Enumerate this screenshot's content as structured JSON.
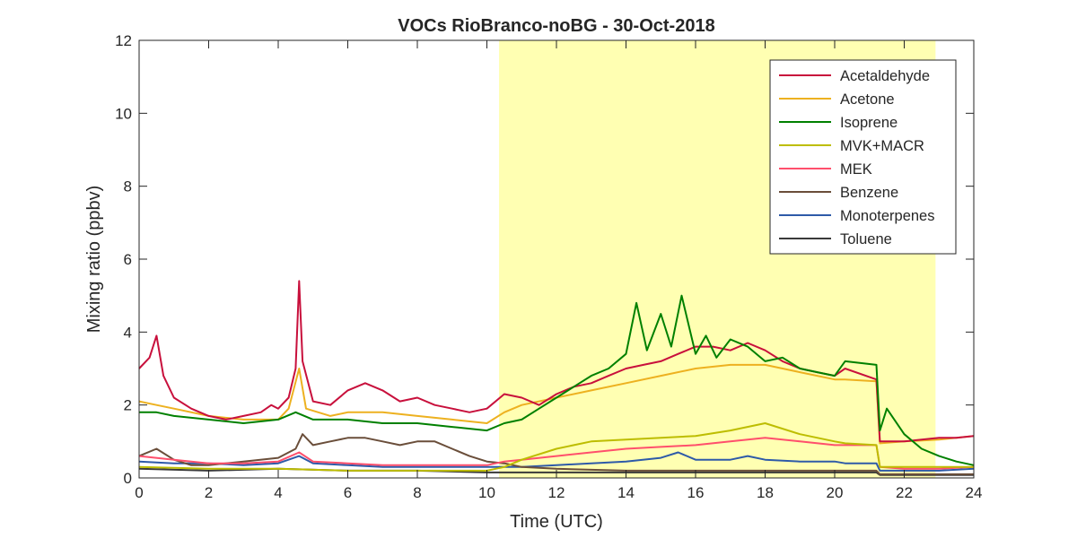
{
  "chart_data": {
    "type": "line",
    "title": "VOCs RioBranco-noBG - 30-Oct-2018",
    "xlabel": "Time (UTC)",
    "ylabel": "Mixing ratio (ppbv)",
    "xlim": [
      0,
      24
    ],
    "ylim": [
      0,
      12
    ],
    "xticks": [
      0,
      2,
      4,
      6,
      8,
      10,
      12,
      14,
      16,
      18,
      20,
      22,
      24
    ],
    "yticks": [
      0,
      2,
      4,
      6,
      8,
      10,
      12
    ],
    "grid": false,
    "legend_position": "top-right",
    "daylight_band": {
      "x_start": 10.35,
      "x_end": 22.9,
      "color": "#ffffb2"
    },
    "series": [
      {
        "name": "Acetaldehyde",
        "color": "#c8103c",
        "x": [
          0,
          0.3,
          0.5,
          0.7,
          1,
          1.5,
          2,
          2.5,
          3,
          3.5,
          3.8,
          4,
          4.3,
          4.5,
          4.6,
          4.7,
          5,
          5.5,
          6,
          6.5,
          7,
          7.5,
          8,
          8.5,
          9,
          9.5,
          10,
          10.5,
          11,
          11.5,
          12,
          12.5,
          13,
          13.5,
          14,
          14.5,
          15,
          15.5,
          16,
          16.5,
          17,
          17.5,
          18,
          18.5,
          19,
          19.5,
          20,
          20.3,
          21.2,
          21.3,
          22,
          22.5,
          23,
          23.5,
          24
        ],
        "y": [
          3.0,
          3.3,
          3.9,
          2.8,
          2.2,
          1.9,
          1.7,
          1.6,
          1.7,
          1.8,
          2.0,
          1.9,
          2.2,
          3.0,
          5.4,
          3.2,
          2.1,
          2.0,
          2.4,
          2.6,
          2.4,
          2.1,
          2.2,
          2.0,
          1.9,
          1.8,
          1.9,
          2.3,
          2.2,
          2.0,
          2.3,
          2.5,
          2.6,
          2.8,
          3.0,
          3.1,
          3.2,
          3.4,
          3.6,
          3.6,
          3.5,
          3.7,
          3.5,
          3.2,
          3.0,
          2.9,
          2.8,
          3.0,
          2.7,
          1.0,
          1.0,
          1.05,
          1.1,
          1.1,
          1.15
        ]
      },
      {
        "name": "Acetone",
        "color": "#edb120",
        "x": [
          0,
          0.5,
          1,
          2,
          3,
          4,
          4.3,
          4.6,
          4.8,
          5.5,
          6,
          7,
          8,
          9,
          10,
          10.5,
          11,
          12,
          13,
          14,
          15,
          16,
          17,
          18,
          19,
          20,
          20.3,
          21.2,
          21.3,
          22,
          23,
          24
        ],
        "y": [
          2.1,
          2.0,
          1.9,
          1.7,
          1.6,
          1.6,
          1.9,
          3.0,
          1.9,
          1.7,
          1.8,
          1.8,
          1.7,
          1.6,
          1.5,
          1.8,
          2.0,
          2.2,
          2.4,
          2.6,
          2.8,
          3.0,
          3.1,
          3.1,
          2.9,
          2.7,
          2.7,
          2.65,
          0.95,
          1.0,
          1.05,
          1.15
        ]
      },
      {
        "name": "Isoprene",
        "color": "#008000",
        "x": [
          0,
          0.5,
          1,
          2,
          3,
          4,
          4.5,
          5,
          6,
          7,
          8,
          9,
          10,
          10.5,
          11,
          11.5,
          12,
          12.5,
          13,
          13.5,
          14,
          14.3,
          14.6,
          15,
          15.3,
          15.6,
          16,
          16.3,
          16.6,
          17,
          17.5,
          18,
          18.5,
          19,
          19.5,
          20,
          20.3,
          21.2,
          21.3,
          21.5,
          22,
          22.5,
          23,
          23.5,
          24
        ],
        "y": [
          1.8,
          1.8,
          1.7,
          1.6,
          1.5,
          1.6,
          1.8,
          1.6,
          1.6,
          1.5,
          1.5,
          1.4,
          1.3,
          1.5,
          1.6,
          1.9,
          2.2,
          2.5,
          2.8,
          3.0,
          3.4,
          4.8,
          3.5,
          4.5,
          3.6,
          5.0,
          3.4,
          3.9,
          3.3,
          3.8,
          3.6,
          3.2,
          3.3,
          3.0,
          2.9,
          2.8,
          3.2,
          3.1,
          1.3,
          1.9,
          1.2,
          0.8,
          0.6,
          0.45,
          0.35
        ]
      },
      {
        "name": "MVK+MACR",
        "color": "#bdbd00",
        "x": [
          0,
          2,
          4,
          6,
          8,
          10,
          10.5,
          11,
          12,
          13,
          14,
          15,
          16,
          17,
          18,
          19,
          20,
          20.3,
          21.2,
          21.3,
          22,
          24
        ],
        "y": [
          0.3,
          0.25,
          0.25,
          0.2,
          0.2,
          0.2,
          0.3,
          0.5,
          0.8,
          1.0,
          1.05,
          1.1,
          1.15,
          1.3,
          1.5,
          1.2,
          1.0,
          0.95,
          0.9,
          0.3,
          0.3,
          0.3
        ]
      },
      {
        "name": "MEK",
        "color": "#ff4f6c",
        "x": [
          0,
          1,
          2,
          3,
          4,
          4.6,
          5,
          6,
          7,
          8,
          9,
          10,
          10.5,
          11,
          12,
          13,
          14,
          15,
          16,
          17,
          18,
          19,
          20,
          20.3,
          21.2,
          21.3,
          22,
          23,
          24
        ],
        "y": [
          0.6,
          0.5,
          0.4,
          0.4,
          0.45,
          0.7,
          0.45,
          0.4,
          0.35,
          0.35,
          0.35,
          0.35,
          0.45,
          0.5,
          0.6,
          0.7,
          0.8,
          0.85,
          0.9,
          1.0,
          1.1,
          1.0,
          0.9,
          0.9,
          0.9,
          0.3,
          0.25,
          0.25,
          0.3
        ]
      },
      {
        "name": "Benzene",
        "color": "#6a4e3a",
        "x": [
          0,
          0.5,
          1,
          1.5,
          2,
          3,
          4,
          4.5,
          4.7,
          5,
          5.5,
          6,
          6.5,
          7,
          7.5,
          8,
          8.5,
          9,
          9.5,
          10,
          10.5,
          11,
          12,
          14,
          16,
          18,
          20,
          21.2,
          21.3,
          22,
          24
        ],
        "y": [
          0.6,
          0.8,
          0.5,
          0.35,
          0.35,
          0.45,
          0.55,
          0.8,
          1.2,
          0.9,
          1.0,
          1.1,
          1.1,
          1.0,
          0.9,
          1.0,
          1.0,
          0.8,
          0.6,
          0.45,
          0.4,
          0.3,
          0.25,
          0.2,
          0.2,
          0.2,
          0.2,
          0.2,
          0.1,
          0.1,
          0.1
        ]
      },
      {
        "name": "Monoterpenes",
        "color": "#2e5aa8",
        "x": [
          0,
          1,
          2,
          3,
          4,
          4.6,
          5,
          6,
          7,
          8,
          9,
          10,
          11,
          12,
          13,
          14,
          15,
          15.5,
          16,
          17,
          17.5,
          18,
          19,
          20,
          20.3,
          21.2,
          21.3,
          22,
          23,
          24
        ],
        "y": [
          0.45,
          0.4,
          0.4,
          0.35,
          0.4,
          0.6,
          0.4,
          0.35,
          0.3,
          0.3,
          0.3,
          0.3,
          0.3,
          0.35,
          0.4,
          0.45,
          0.55,
          0.7,
          0.5,
          0.5,
          0.6,
          0.5,
          0.45,
          0.45,
          0.4,
          0.4,
          0.2,
          0.2,
          0.2,
          0.25
        ]
      },
      {
        "name": "Toluene",
        "color": "#3a3a3a",
        "x": [
          0,
          2,
          4,
          6,
          8,
          10,
          12,
          14,
          16,
          18,
          20,
          21.2,
          21.3,
          22,
          24
        ],
        "y": [
          0.25,
          0.2,
          0.25,
          0.2,
          0.2,
          0.15,
          0.15,
          0.15,
          0.15,
          0.15,
          0.15,
          0.15,
          0.08,
          0.08,
          0.08
        ]
      }
    ]
  }
}
